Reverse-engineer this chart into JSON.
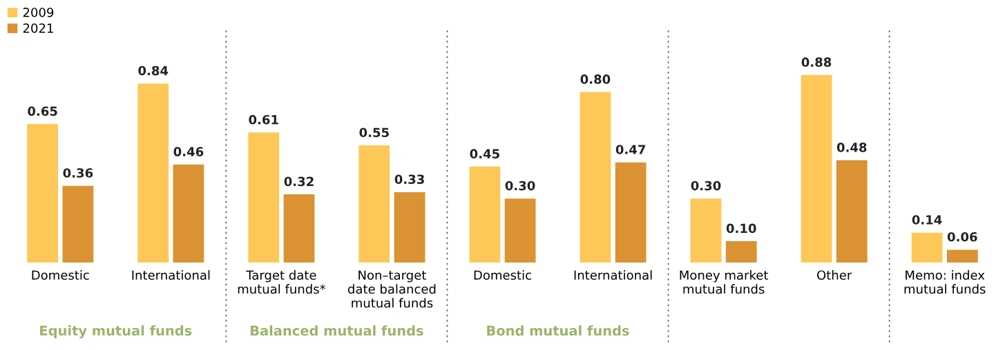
{
  "chart_data": {
    "type": "bar",
    "categories": [
      "Domestic",
      "International",
      "Target date\nmutual funds*",
      "Non–target\ndate balanced\nmutual funds",
      "Domestic",
      "International",
      "Money market\nmutual funds",
      "Other",
      "Memo: index\nmutual funds"
    ],
    "series": [
      {
        "name": "2009",
        "color": "#fdc857",
        "values": [
          0.65,
          0.84,
          0.61,
          0.55,
          0.45,
          0.8,
          0.3,
          0.88,
          0.14
        ],
        "value_labels": [
          "0.65",
          "0.84",
          "0.61",
          "0.55",
          "0.45",
          "0.80",
          "0.30",
          "0.88",
          "0.14"
        ]
      },
      {
        "name": "2021",
        "color": "#db9232",
        "values": [
          0.36,
          0.46,
          0.32,
          0.33,
          0.3,
          0.47,
          0.1,
          0.48,
          0.06
        ],
        "value_labels": [
          "0.36",
          "0.46",
          "0.32",
          "0.33",
          "0.30",
          "0.47",
          "0.10",
          "0.48",
          "0.06"
        ]
      }
    ],
    "annotations": [
      "Equity mutual funds",
      "Balanced mutual funds",
      "Bond mutual funds"
    ],
    "legend": "top left",
    "grid": false,
    "tick_labels": "x"
  }
}
